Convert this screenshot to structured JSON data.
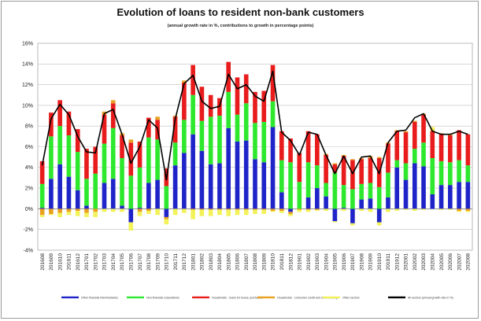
{
  "chart_data": {
    "type": "bar",
    "stacked": true,
    "title": "Evolution of loans to resident non-bank customers",
    "subtitle": "(annual growth rate in %, contributions to growth in percentage points)",
    "xlabel": "",
    "ylabel": "",
    "ylim": [
      -4,
      16
    ],
    "yticks": [
      -4,
      -2,
      0,
      2,
      4,
      6,
      8,
      10,
      12,
      14,
      16
    ],
    "ytick_labels": [
      "-4%",
      "-2%",
      "0%",
      "2%",
      "4%",
      "6%",
      "8%",
      "10%",
      "12%",
      "14%",
      "16%"
    ],
    "grid": true,
    "legend_position": "bottom",
    "categories": [
      "201608",
      "201609",
      "201610",
      "201611",
      "201612",
      "201701",
      "201702",
      "201703",
      "201704",
      "201705",
      "201706",
      "201707",
      "201708",
      "201709",
      "201710",
      "201711",
      "201712",
      "201801",
      "201802",
      "201803",
      "201804",
      "201805",
      "201806",
      "201807",
      "201808",
      "201809",
      "201810",
      "201811",
      "201812",
      "201901",
      "201902",
      "201903",
      "201904",
      "201905",
      "201906",
      "201907",
      "201908",
      "201909",
      "201910",
      "201911",
      "201912",
      "202001",
      "202002",
      "202003",
      "202004",
      "202005",
      "202006",
      "202007",
      "202008"
    ],
    "series": [
      {
        "name": "Other financial intermediaries",
        "color": "#1f24c8",
        "values": [
          0.1,
          2.9,
          4.3,
          3.1,
          1.8,
          0.3,
          0,
          2.5,
          2.9,
          0.3,
          -1.3,
          0.1,
          2.5,
          2.8,
          -0.8,
          4.2,
          5.4,
          7.2,
          5.6,
          4.3,
          4.4,
          7.8,
          6.5,
          6.6,
          4.8,
          4.5,
          7.9,
          1.6,
          -0.3,
          0,
          1.1,
          2,
          1.2,
          -1.2,
          0.1,
          -1.4,
          0.9,
          1,
          -1.3,
          1.1,
          4.0,
          2.8,
          4.4,
          4.1,
          1.4,
          2.3,
          2.3,
          2.6,
          2.6
        ]
      },
      {
        "name": "Non-financial corporations",
        "color": "#2ee82e",
        "values": [
          2.3,
          4.1,
          3.7,
          4,
          3.7,
          2.6,
          3.4,
          3.8,
          4.9,
          4.6,
          3.2,
          3.9,
          4.4,
          3.9,
          2.2,
          2.2,
          3.2,
          3.8,
          2.9,
          4.6,
          4.6,
          3.5,
          2.6,
          3.6,
          3.5,
          3.9,
          2.5,
          3.1,
          4.5,
          2.6,
          3.4,
          2.2,
          1.3,
          3.5,
          2.2,
          1.9,
          1.5,
          1.5,
          2.1,
          2.4,
          0.7,
          1.6,
          1.4,
          2.3,
          3.5,
          2.3,
          2.2,
          2.1,
          1.6
        ]
      },
      {
        "name": "Households - loans for house purchases",
        "color": "#e81c1c",
        "values": [
          2.2,
          2.3,
          2.5,
          2.3,
          2.2,
          2.9,
          2.6,
          2.8,
          2.4,
          2.2,
          3.2,
          2.5,
          1.9,
          1.9,
          1.7,
          2.5,
          3.6,
          2.9,
          3.3,
          2.1,
          1.7,
          2.9,
          3.6,
          2.8,
          3.0,
          3.0,
          3.5,
          2.8,
          2.3,
          2.8,
          3.0,
          3.0,
          2.7,
          0.8,
          2.8,
          2.8,
          2.4,
          2.4,
          2.8,
          2.8,
          2.8,
          3.0,
          2.6,
          2.7,
          2.6,
          2.6,
          2.6,
          2.9,
          3.0
        ]
      },
      {
        "name": "Households - consumer credit and other lending",
        "color": "#e8a020",
        "values": [
          -0.6,
          -0.5,
          -0.4,
          -0.3,
          -0.2,
          -0.4,
          -0.3,
          0.3,
          0.3,
          0.2,
          0.3,
          -0.3,
          -0.2,
          0.3,
          -0.2,
          0.1,
          0.2,
          -0.1,
          -0.1,
          -0.1,
          -0.1,
          -0.1,
          -0.1,
          -0.1,
          -0.1,
          -0.1,
          -0.2,
          -0.2,
          -0.2,
          -0.1,
          -0.1,
          -0.1,
          0.1,
          0.1,
          0.1,
          0.1,
          0.1,
          0.2,
          0.1,
          0.1,
          0.1,
          0.1,
          0.1,
          0.1,
          0.1,
          0.1,
          0.1,
          -0.2,
          -0.2
        ]
      },
      {
        "name": "Other sectors",
        "color": "#f2f25a",
        "values": [
          -0.2,
          -0.1,
          -0.4,
          -0.3,
          -0.5,
          -0.4,
          -0.5,
          -0.3,
          -0.3,
          -0.3,
          -0.8,
          -0.4,
          -0.3,
          -0.6,
          -0.5,
          -0.6,
          -0.4,
          -0.9,
          -0.6,
          -0.6,
          -0.5,
          -0.6,
          -0.5,
          -0.5,
          -0.4,
          -0.4,
          -0.1,
          -0.2,
          -0.2,
          -0.2,
          -0.2,
          -0.1,
          -0.2,
          -0.1,
          -0.2,
          -0.2,
          -0.2,
          -0.3,
          -0.3,
          -0.3,
          -0.2,
          -0.1,
          -0.2,
          -0.1,
          0.3,
          -0.1,
          -0.1,
          -0.1,
          -0.1
        ]
      }
    ],
    "line": {
      "name": "All sectors (annual growth rate in %)",
      "color": "#000000",
      "values": [
        4.2,
        8.7,
        10.1,
        9.1,
        7.0,
        5.5,
        5.4,
        9.2,
        9.6,
        7.2,
        4.4,
        6.0,
        8.6,
        7.8,
        2.8,
        8.7,
        12.1,
        12.9,
        10.4,
        9.7,
        9.9,
        13.0,
        11.6,
        12.0,
        10.9,
        10.4,
        13.3,
        7.4,
        6.6,
        5.2,
        7.4,
        7.2,
        5.2,
        3.4,
        5.1,
        3.4,
        5.0,
        5.1,
        3.4,
        6.4,
        7.5,
        7.6,
        8.8,
        9.2,
        7.5,
        7.2,
        7.2,
        7.5,
        7.2
      ]
    }
  }
}
